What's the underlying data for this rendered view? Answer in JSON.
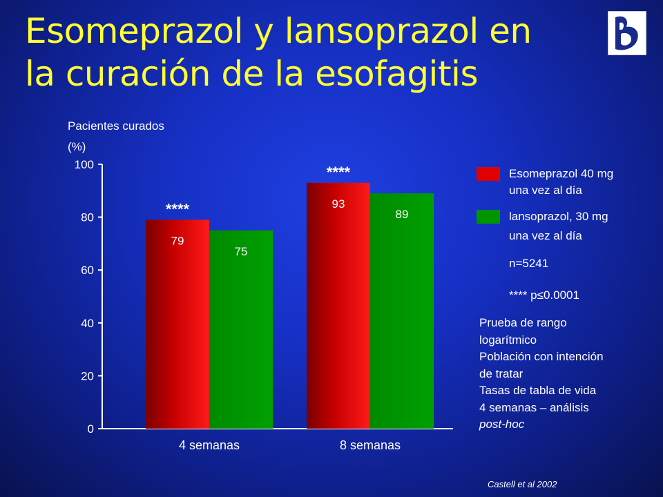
{
  "title": {
    "line1": "Esomeprazol y lansoprazol en",
    "line2": "la curación de la esofagitis"
  },
  "colors": {
    "esomeprazol": "#e00000",
    "lansoprazol": "#009400",
    "title": "#ffff33"
  },
  "logo_icon": "logo-icon",
  "chart_data": {
    "type": "bar",
    "ylabel_line1": "Pacientes curados",
    "ylabel_line2": "(%)",
    "categories": [
      "4 semanas",
      "8 semanas"
    ],
    "series": [
      {
        "name": "Esomeprazol 40 mg una vez al día",
        "values": [
          79,
          93
        ]
      },
      {
        "name": "lansoprazol, 30 mg una vez al día",
        "values": [
          75,
          89
        ]
      }
    ],
    "ylim": [
      0,
      100
    ],
    "yticks": [
      0,
      20,
      40,
      60,
      80,
      100
    ],
    "significance": [
      "****",
      "****"
    ],
    "grid": false,
    "legend_placement": "right"
  },
  "legend": {
    "item1_line1": "Esomeprazol 40 mg",
    "item1_line2": "una vez al día",
    "item2_line1": "lansoprazol, 30 mg",
    "item2_line2": "una vez al día",
    "n": "n=5241",
    "p": "**** p≤0.0001"
  },
  "notes": [
    {
      "text": "Prueba de rango",
      "italic": false
    },
    {
      "text": "logarítmico",
      "italic": false
    },
    {
      "text": "Población con intención",
      "italic": false
    },
    {
      "text": "de tratar",
      "italic": false
    },
    {
      "text": "Tasas de tabla de vida",
      "italic": false
    },
    {
      "text": "4 semanas – análisis",
      "italic": false
    },
    {
      "text": "post-hoc",
      "italic": true
    }
  ],
  "source": "Castell et al 2002"
}
